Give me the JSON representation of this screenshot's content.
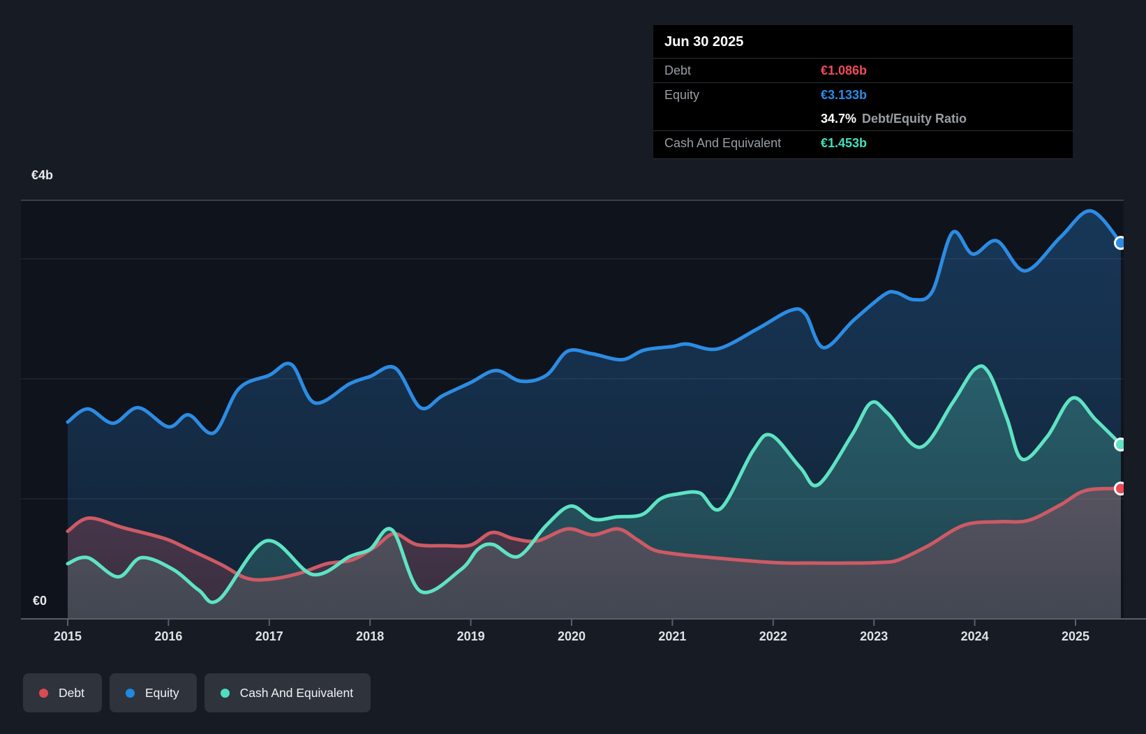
{
  "tooltip": {
    "date": "Jun 30 2025",
    "debt_label": "Debt",
    "debt_value": "€1.086b",
    "debt_color": "#ee4b58",
    "equity_label": "Equity",
    "equity_value": "€3.133b",
    "equity_color": "#2b8ce4",
    "ratio_value": "34.7%",
    "ratio_label": "Debt/Equity Ratio",
    "cash_label": "Cash And Equivalent",
    "cash_value": "€1.453b",
    "cash_color": "#43e0bd"
  },
  "legend": [
    {
      "label": "Debt",
      "color": "#da4b53"
    },
    {
      "label": "Equity",
      "color": "#2089e0"
    },
    {
      "label": "Cash And Equivalent",
      "color": "#4fdfc0"
    }
  ],
  "chart_data": {
    "type": "area",
    "currency_unit": "€ billions",
    "x_range": [
      2015,
      2025.5
    ],
    "ylim": [
      0,
      4
    ],
    "y_axis_max_label": "€4b",
    "y_axis_min_label": "€0",
    "y_gridlines_billions": [
      1,
      2,
      3
    ],
    "x_tick_labels": [
      "2015",
      "2016",
      "2017",
      "2018",
      "2019",
      "2020",
      "2021",
      "2022",
      "2023",
      "2024",
      "2025"
    ],
    "legend_position": "bottom-left",
    "series": [
      {
        "name": "Equity",
        "color": "#2c8ce3",
        "marker_color": "#2c8ce3",
        "points": [
          [
            2015.0,
            1.64
          ],
          [
            2015.2,
            1.75
          ],
          [
            2015.45,
            1.63
          ],
          [
            2015.7,
            1.76
          ],
          [
            2016.0,
            1.6
          ],
          [
            2016.2,
            1.7
          ],
          [
            2016.45,
            1.55
          ],
          [
            2016.7,
            1.92
          ],
          [
            2017.0,
            2.03
          ],
          [
            2017.22,
            2.12
          ],
          [
            2017.45,
            1.8
          ],
          [
            2017.8,
            1.96
          ],
          [
            2018.0,
            2.02
          ],
          [
            2018.25,
            2.09
          ],
          [
            2018.5,
            1.76
          ],
          [
            2018.72,
            1.86
          ],
          [
            2019.0,
            1.97
          ],
          [
            2019.25,
            2.07
          ],
          [
            2019.5,
            1.98
          ],
          [
            2019.75,
            2.03
          ],
          [
            2019.96,
            2.23
          ],
          [
            2020.2,
            2.21
          ],
          [
            2020.5,
            2.16
          ],
          [
            2020.72,
            2.24
          ],
          [
            2021.0,
            2.27
          ],
          [
            2021.15,
            2.29
          ],
          [
            2021.45,
            2.25
          ],
          [
            2021.85,
            2.42
          ],
          [
            2022.17,
            2.57
          ],
          [
            2022.32,
            2.54
          ],
          [
            2022.5,
            2.26
          ],
          [
            2022.8,
            2.49
          ],
          [
            2023.1,
            2.7
          ],
          [
            2023.22,
            2.72
          ],
          [
            2023.4,
            2.66
          ],
          [
            2023.58,
            2.73
          ],
          [
            2023.78,
            3.22
          ],
          [
            2023.98,
            3.04
          ],
          [
            2024.22,
            3.15
          ],
          [
            2024.5,
            2.9
          ],
          [
            2024.85,
            3.18
          ],
          [
            2025.15,
            3.4
          ],
          [
            2025.45,
            3.133
          ]
        ]
      },
      {
        "name": "Cash And Equivalent",
        "color": "#5ee3c4",
        "marker_color": "#5ee3c4",
        "points": [
          [
            2015.0,
            0.46
          ],
          [
            2015.2,
            0.51
          ],
          [
            2015.5,
            0.35
          ],
          [
            2015.73,
            0.51
          ],
          [
            2016.05,
            0.41
          ],
          [
            2016.3,
            0.24
          ],
          [
            2016.5,
            0.16
          ],
          [
            2016.97,
            0.65
          ],
          [
            2017.43,
            0.37
          ],
          [
            2017.8,
            0.52
          ],
          [
            2018.0,
            0.58
          ],
          [
            2018.22,
            0.74
          ],
          [
            2018.5,
            0.23
          ],
          [
            2018.9,
            0.41
          ],
          [
            2019.07,
            0.58
          ],
          [
            2019.22,
            0.62
          ],
          [
            2019.47,
            0.52
          ],
          [
            2019.75,
            0.78
          ],
          [
            2019.99,
            0.94
          ],
          [
            2020.22,
            0.83
          ],
          [
            2020.45,
            0.85
          ],
          [
            2020.7,
            0.87
          ],
          [
            2020.88,
            1.0
          ],
          [
            2021.05,
            1.04
          ],
          [
            2021.27,
            1.05
          ],
          [
            2021.48,
            0.92
          ],
          [
            2021.8,
            1.4
          ],
          [
            2021.98,
            1.53
          ],
          [
            2022.27,
            1.26
          ],
          [
            2022.45,
            1.12
          ],
          [
            2022.78,
            1.53
          ],
          [
            2022.97,
            1.8
          ],
          [
            2023.14,
            1.71
          ],
          [
            2023.46,
            1.43
          ],
          [
            2023.78,
            1.8
          ],
          [
            2024.0,
            2.08
          ],
          [
            2024.14,
            2.05
          ],
          [
            2024.32,
            1.67
          ],
          [
            2024.47,
            1.33
          ],
          [
            2024.72,
            1.52
          ],
          [
            2024.97,
            1.84
          ],
          [
            2025.2,
            1.66
          ],
          [
            2025.45,
            1.453
          ]
        ]
      },
      {
        "name": "Debt",
        "color": "#cd5a65",
        "marker_color": "#e84b55",
        "points": [
          [
            2015.0,
            0.73
          ],
          [
            2015.21,
            0.84
          ],
          [
            2015.55,
            0.76
          ],
          [
            2015.96,
            0.67
          ],
          [
            2016.2,
            0.58
          ],
          [
            2016.53,
            0.45
          ],
          [
            2016.77,
            0.34
          ],
          [
            2017.0,
            0.33
          ],
          [
            2017.3,
            0.38
          ],
          [
            2017.57,
            0.46
          ],
          [
            2017.82,
            0.49
          ],
          [
            2018.05,
            0.6
          ],
          [
            2018.24,
            0.71
          ],
          [
            2018.46,
            0.62
          ],
          [
            2018.75,
            0.61
          ],
          [
            2019.0,
            0.615
          ],
          [
            2019.21,
            0.72
          ],
          [
            2019.42,
            0.67
          ],
          [
            2019.66,
            0.65
          ],
          [
            2019.96,
            0.75
          ],
          [
            2020.21,
            0.7
          ],
          [
            2020.46,
            0.75
          ],
          [
            2020.65,
            0.66
          ],
          [
            2020.8,
            0.58
          ],
          [
            2020.95,
            0.55
          ],
          [
            2021.27,
            0.52
          ],
          [
            2022.0,
            0.47
          ],
          [
            2022.4,
            0.465
          ],
          [
            2022.75,
            0.465
          ],
          [
            2023.05,
            0.47
          ],
          [
            2023.24,
            0.49
          ],
          [
            2023.54,
            0.61
          ],
          [
            2023.89,
            0.78
          ],
          [
            2024.23,
            0.81
          ],
          [
            2024.53,
            0.82
          ],
          [
            2024.85,
            0.95
          ],
          [
            2025.1,
            1.07
          ],
          [
            2025.45,
            1.086
          ]
        ]
      }
    ]
  }
}
